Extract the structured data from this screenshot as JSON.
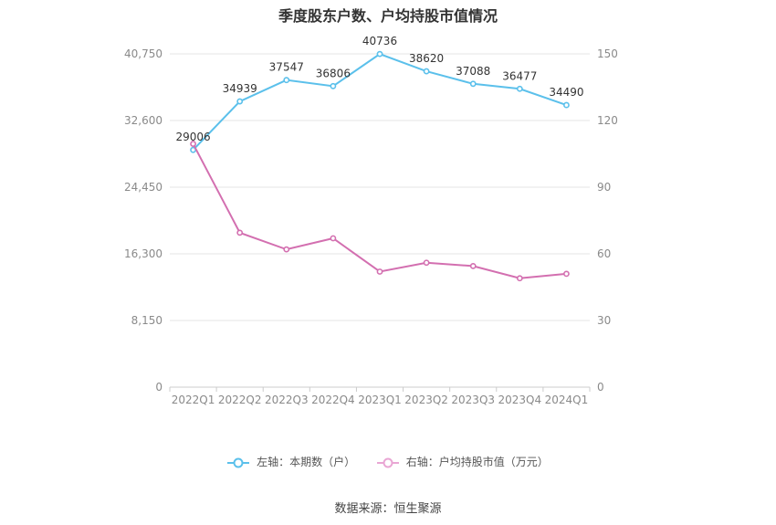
{
  "chart_data": {
    "type": "line",
    "title": "季度股东户数、户均持股市值情况",
    "categories": [
      "2022Q1",
      "2022Q2",
      "2022Q3",
      "2022Q4",
      "2023Q1",
      "2023Q2",
      "2023Q3",
      "2023Q4",
      "2024Q1"
    ],
    "left_axis": {
      "ticks": [
        "0",
        "8,150",
        "16,300",
        "24,450",
        "32,600",
        "40,750"
      ],
      "ylim": [
        0,
        40750
      ]
    },
    "right_axis": {
      "ticks": [
        "0",
        "30",
        "60",
        "90",
        "120",
        "150"
      ],
      "ylim": [
        0,
        150
      ]
    },
    "series": [
      {
        "name": "左轴：本期数（户）",
        "axis": "left",
        "color": "#5bc0eb",
        "values": [
          29006,
          34939,
          37547,
          36806,
          40736,
          38620,
          37088,
          36477,
          34490
        ],
        "labels": [
          "29006",
          "34939",
          "37547",
          "36806",
          "40736",
          "38620",
          "37088",
          "36477",
          "34490"
        ]
      },
      {
        "name": "右轴：户均持股市值（万元）",
        "axis": "right",
        "color": "#d36fb0",
        "values": [
          109.5,
          69.5,
          62,
          67,
          52,
          56,
          54.5,
          49,
          51
        ]
      }
    ],
    "grid": true,
    "legend_position": "bottom"
  },
  "footer": {
    "source": "数据来源：恒生聚源"
  }
}
